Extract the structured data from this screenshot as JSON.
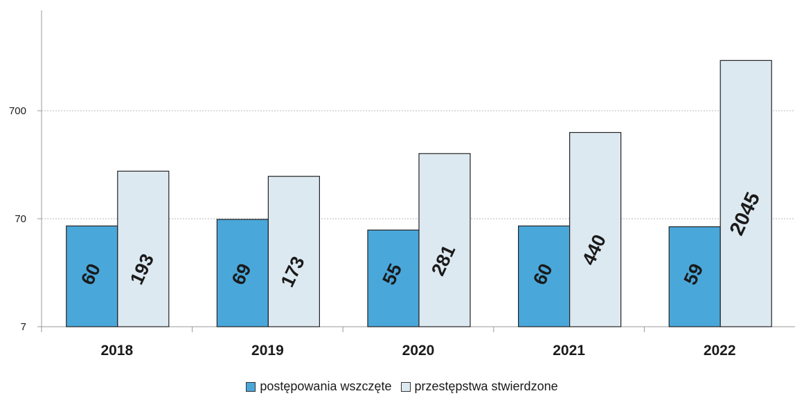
{
  "chart_data": {
    "type": "bar",
    "title": "",
    "xlabel": "",
    "ylabel": "",
    "scale": "log",
    "ylim": [
      7,
      2045
    ],
    "yticks": [
      7,
      70,
      700
    ],
    "grid": true,
    "legend_position": "bottom",
    "categories": [
      "2018",
      "2019",
      "2020",
      "2021",
      "2022"
    ],
    "series": [
      {
        "name": "postępowania wszczęte",
        "color": "#4aa7da",
        "values": [
          60,
          69,
          55,
          60,
          59
        ]
      },
      {
        "name": "przestępstwa stwierdzone",
        "color": "#dde9f1",
        "values": [
          193,
          173,
          281,
          440,
          2045
        ]
      }
    ]
  }
}
